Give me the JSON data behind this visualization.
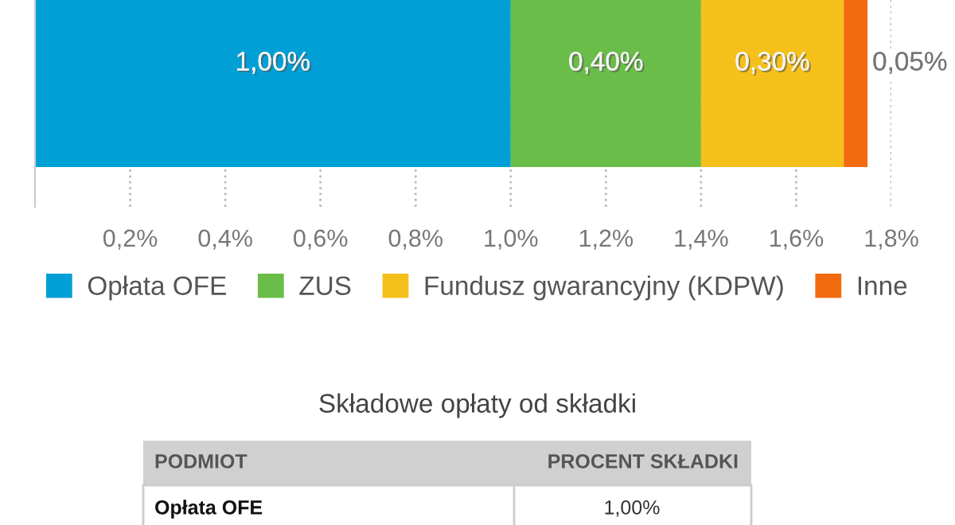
{
  "chart_data": {
    "type": "bar",
    "orientation": "horizontal",
    "stacked": true,
    "categories": [
      null
    ],
    "series": [
      {
        "name": "Opłata OFE",
        "color": "#00a0d6",
        "values": [
          1.0
        ],
        "value_labels": [
          "1,00%"
        ]
      },
      {
        "name": "ZUS",
        "color": "#6bbd4a",
        "values": [
          0.4
        ],
        "value_labels": [
          "0,40%"
        ]
      },
      {
        "name": "Fundusz gwarancyjny (KDPW)",
        "color": "#f5c01a",
        "values": [
          0.3
        ],
        "value_labels": [
          "0,30%"
        ]
      },
      {
        "name": "Inne",
        "color": "#f26b0f",
        "values": [
          0.05
        ],
        "value_labels": [
          "0,05%"
        ]
      }
    ],
    "xlim": [
      0,
      1.8
    ],
    "xticks": [
      {
        "value": 0.2,
        "label": "0,2%"
      },
      {
        "value": 0.4,
        "label": "0,4%"
      },
      {
        "value": 0.6,
        "label": "0,6%"
      },
      {
        "value": 0.8,
        "label": "0,8%"
      },
      {
        "value": 1.0,
        "label": "1,0%"
      },
      {
        "value": 1.2,
        "label": "1,2%"
      },
      {
        "value": 1.4,
        "label": "1,4%"
      },
      {
        "value": 1.6,
        "label": "1,6%"
      },
      {
        "value": 1.8,
        "label": "1,8%"
      }
    ],
    "grid": "x",
    "legend": "bottom",
    "annotations": [
      "Składowe opłaty od składki",
      "PODMIOT",
      "PROCENT SKŁADKI",
      "Opłata OFE",
      "1,00%"
    ]
  }
}
